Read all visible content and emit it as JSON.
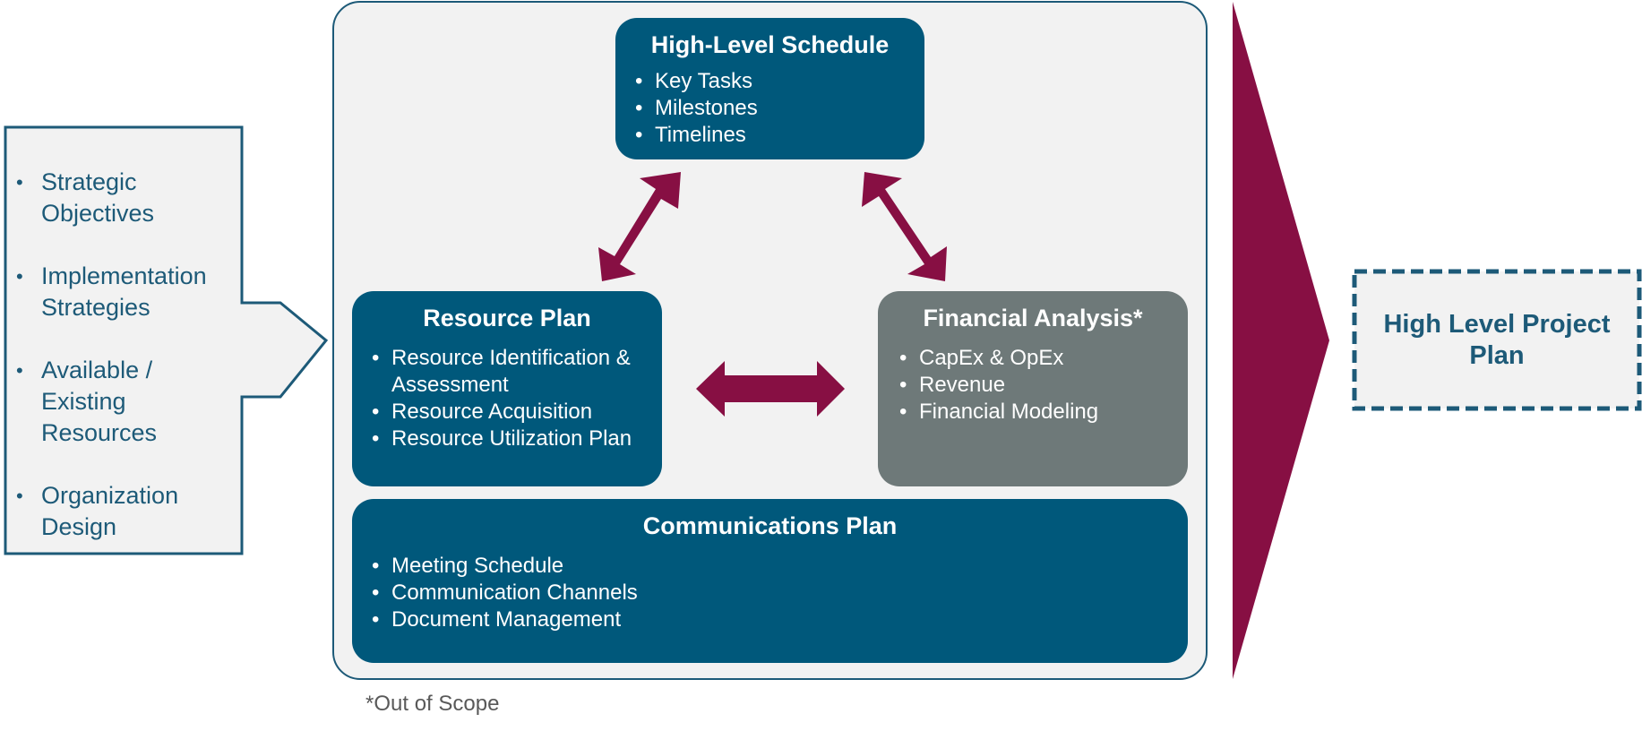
{
  "inputs": {
    "items": [
      "Strategic Objectives",
      "Implementation Strategies",
      "Available / Existing Resources",
      "Organization Design"
    ]
  },
  "schedule": {
    "title": "High-Level Schedule",
    "items": [
      "Key Tasks",
      "Milestones",
      "Timelines"
    ]
  },
  "resource": {
    "title": "Resource Plan",
    "items": [
      "Resource Identification & Assessment",
      "Resource Acquisition",
      "Resource Utilization Plan"
    ]
  },
  "financial": {
    "title": "Financial Analysis*",
    "items": [
      "CapEx & OpEx",
      "Revenue",
      "Financial Modeling"
    ]
  },
  "comms": {
    "title": "Communications Plan",
    "items": [
      "Meeting Schedule",
      "Communication Channels",
      "Document Management"
    ]
  },
  "footnote": "*Out of Scope",
  "output": {
    "label": "High Level Project Plan"
  },
  "colors": {
    "teal": "#00587b",
    "gray": "#6e7979",
    "maroon": "#870f43",
    "panel": "#f2f2f2",
    "outline": "#1d5a78"
  }
}
